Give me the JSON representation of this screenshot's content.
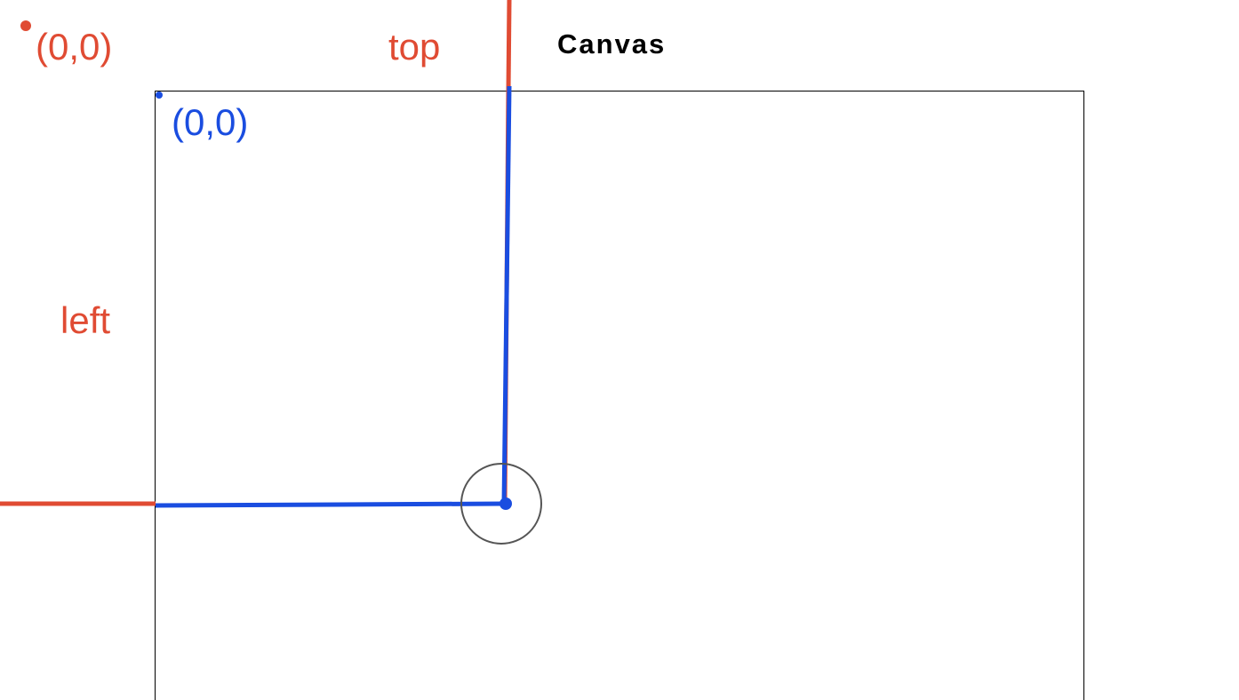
{
  "labels": {
    "page_origin": "(0,0)",
    "canvas_origin": "(0,0)",
    "top": "top",
    "left": "left",
    "canvas_title": "Canvas"
  },
  "colors": {
    "page_reference": "#e04b33",
    "canvas_reference": "#1a4de0",
    "canvas_border": "#000000",
    "target_circle": "#555555"
  },
  "icons": {
    "page_origin_marker": "dot",
    "canvas_origin_marker": "dot",
    "target_marker": "circle-with-center-dot"
  }
}
